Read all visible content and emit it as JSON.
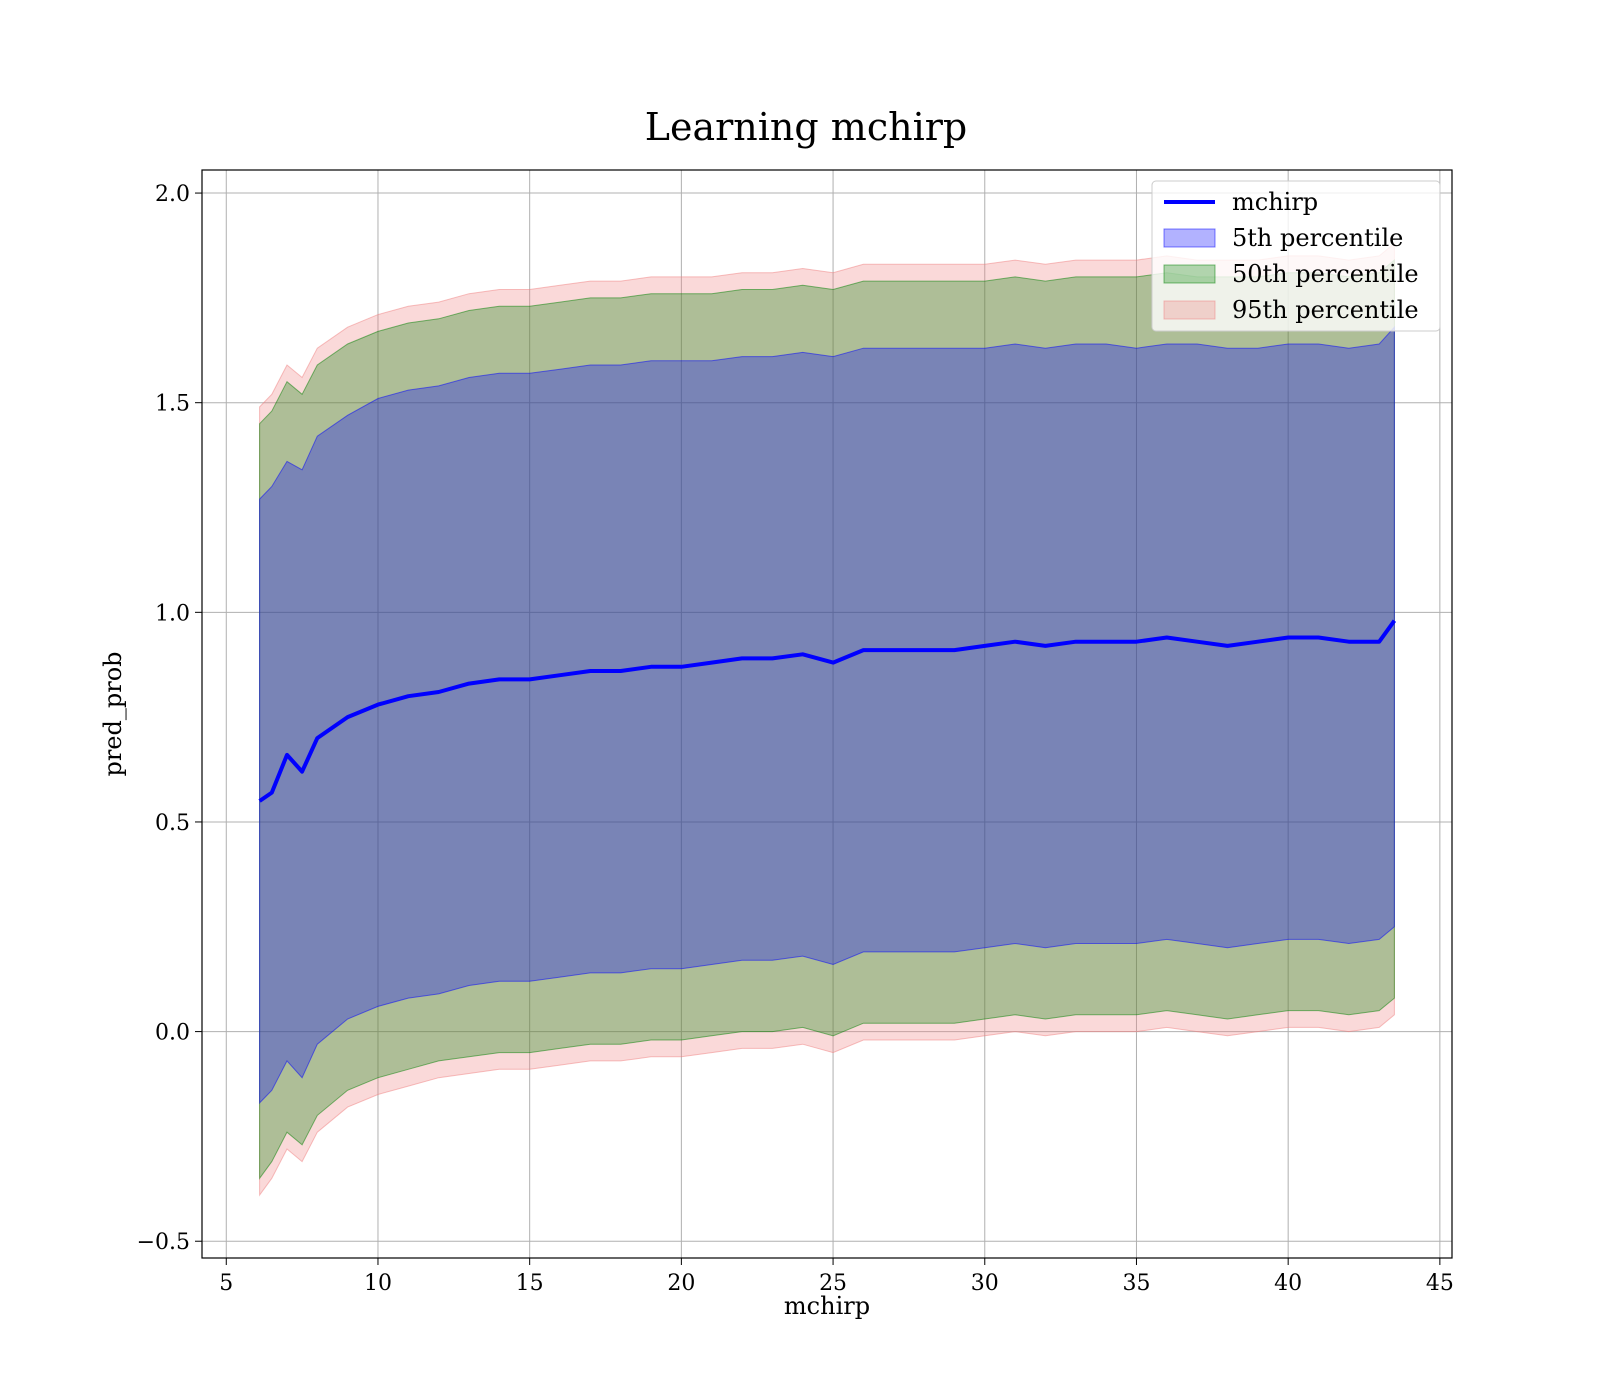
{
  "chart_data": {
    "type": "area",
    "title": "Learning mchirp",
    "xlabel": "mchirp",
    "ylabel": "pred_prob",
    "xlim": [
      4.2,
      45.4
    ],
    "ylim": [
      -0.54,
      2.055
    ],
    "grid": true,
    "legend_placement": "top-right",
    "x_ticks": [
      5,
      10,
      15,
      20,
      25,
      30,
      35,
      40,
      45
    ],
    "x_tick_labels": [
      "5",
      "10",
      "15",
      "20",
      "25",
      "30",
      "35",
      "40",
      "45"
    ],
    "y_ticks": [
      -0.5,
      0.0,
      0.5,
      1.0,
      1.5,
      2.0
    ],
    "y_tick_labels": [
      "−0.5",
      "0.0",
      "0.5",
      "1.0",
      "1.5",
      "2.0"
    ],
    "x": [
      6.1,
      6.5,
      7,
      7.5,
      8,
      9,
      10,
      11,
      12,
      13,
      14,
      15,
      16,
      17,
      18,
      19,
      20,
      21,
      22,
      23,
      24,
      25,
      26,
      27,
      28,
      29,
      30,
      31,
      32,
      33,
      34,
      35,
      36,
      37,
      38,
      39,
      40,
      41,
      42,
      43,
      43.5
    ],
    "series": [
      {
        "name": "mchirp",
        "kind": "line",
        "color": "#0000ff",
        "values": [
          0.55,
          0.57,
          0.66,
          0.62,
          0.7,
          0.75,
          0.78,
          0.8,
          0.81,
          0.83,
          0.84,
          0.84,
          0.85,
          0.86,
          0.86,
          0.87,
          0.87,
          0.88,
          0.89,
          0.89,
          0.9,
          0.88,
          0.91,
          0.91,
          0.91,
          0.91,
          0.92,
          0.93,
          0.92,
          0.93,
          0.93,
          0.93,
          0.94,
          0.93,
          0.92,
          0.93,
          0.94,
          0.94,
          0.93,
          0.93,
          0.98
        ]
      },
      {
        "name": "5th percentile",
        "kind": "band",
        "color": "#0000ff",
        "upper": [
          1.27,
          1.3,
          1.36,
          1.34,
          1.42,
          1.47,
          1.51,
          1.53,
          1.54,
          1.56,
          1.57,
          1.57,
          1.58,
          1.59,
          1.59,
          1.6,
          1.6,
          1.6,
          1.61,
          1.61,
          1.62,
          1.61,
          1.63,
          1.63,
          1.63,
          1.63,
          1.63,
          1.64,
          1.63,
          1.64,
          1.64,
          1.63,
          1.64,
          1.64,
          1.63,
          1.63,
          1.64,
          1.64,
          1.63,
          1.64,
          1.68
        ],
        "lower": [
          -0.17,
          -0.14,
          -0.07,
          -0.11,
          -0.03,
          0.03,
          0.06,
          0.08,
          0.09,
          0.11,
          0.12,
          0.12,
          0.13,
          0.14,
          0.14,
          0.15,
          0.15,
          0.16,
          0.17,
          0.17,
          0.18,
          0.16,
          0.19,
          0.19,
          0.19,
          0.19,
          0.2,
          0.21,
          0.2,
          0.21,
          0.21,
          0.21,
          0.22,
          0.21,
          0.2,
          0.21,
          0.22,
          0.22,
          0.21,
          0.22,
          0.25
        ]
      },
      {
        "name": "50th percentile",
        "kind": "band",
        "color": "#008000",
        "upper": [
          1.45,
          1.48,
          1.55,
          1.52,
          1.59,
          1.64,
          1.67,
          1.69,
          1.7,
          1.72,
          1.73,
          1.73,
          1.74,
          1.75,
          1.75,
          1.76,
          1.76,
          1.76,
          1.77,
          1.77,
          1.78,
          1.77,
          1.79,
          1.79,
          1.79,
          1.79,
          1.79,
          1.8,
          1.79,
          1.8,
          1.8,
          1.8,
          1.81,
          1.8,
          1.8,
          1.8,
          1.81,
          1.81,
          1.8,
          1.81,
          1.84
        ],
        "lower": [
          -0.35,
          -0.31,
          -0.24,
          -0.27,
          -0.2,
          -0.14,
          -0.11,
          -0.09,
          -0.07,
          -0.06,
          -0.05,
          -0.05,
          -0.04,
          -0.03,
          -0.03,
          -0.02,
          -0.02,
          -0.01,
          0.0,
          0.0,
          0.01,
          -0.01,
          0.02,
          0.02,
          0.02,
          0.02,
          0.03,
          0.04,
          0.03,
          0.04,
          0.04,
          0.04,
          0.05,
          0.04,
          0.03,
          0.04,
          0.05,
          0.05,
          0.04,
          0.05,
          0.08
        ]
      },
      {
        "name": "95th percentile",
        "kind": "band",
        "color": "#f08080",
        "upper": [
          1.49,
          1.52,
          1.59,
          1.56,
          1.63,
          1.68,
          1.71,
          1.73,
          1.74,
          1.76,
          1.77,
          1.77,
          1.78,
          1.79,
          1.79,
          1.8,
          1.8,
          1.8,
          1.81,
          1.81,
          1.82,
          1.81,
          1.83,
          1.83,
          1.83,
          1.83,
          1.83,
          1.84,
          1.83,
          1.84,
          1.84,
          1.84,
          1.85,
          1.84,
          1.84,
          1.84,
          1.85,
          1.85,
          1.84,
          1.85,
          1.88
        ],
        "lower": [
          -0.39,
          -0.35,
          -0.28,
          -0.31,
          -0.24,
          -0.18,
          -0.15,
          -0.13,
          -0.11,
          -0.1,
          -0.09,
          -0.09,
          -0.08,
          -0.07,
          -0.07,
          -0.06,
          -0.06,
          -0.05,
          -0.04,
          -0.04,
          -0.03,
          -0.05,
          -0.02,
          -0.02,
          -0.02,
          -0.02,
          -0.01,
          0.0,
          -0.01,
          0.0,
          0.0,
          0.0,
          0.01,
          0.0,
          -0.01,
          0.0,
          0.01,
          0.01,
          0.0,
          0.01,
          0.04
        ]
      }
    ]
  }
}
